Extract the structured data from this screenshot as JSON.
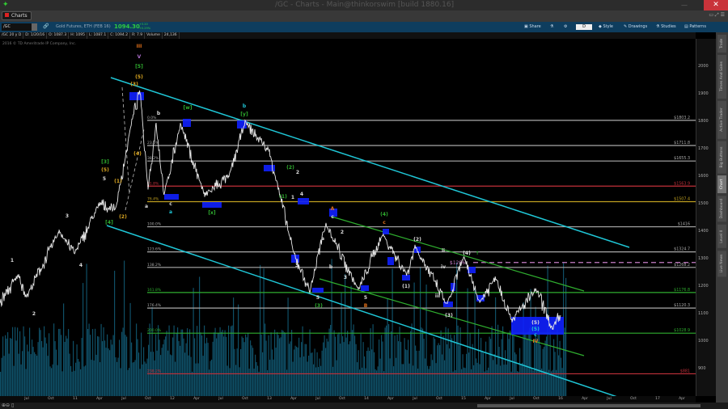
{
  "window": {
    "title": "/GC - Charts - Main@thinkorswim [build 1880.16]",
    "close": "✕",
    "minimize": "—"
  },
  "tabs": {
    "charts": "Charts",
    "right_icons": "▭ ⤢ ☰"
  },
  "toolbar": {
    "symbol": "/GC",
    "description": "Gold Futures, ETH (FEB 16)",
    "last": "1094.30",
    "change": "+3.20",
    "change_pct": "+0.29%",
    "share": "Share",
    "aggregation": "D",
    "style": "Style",
    "drawings": "Drawings",
    "studies": "Studies",
    "patterns": "Patterns"
  },
  "info": [
    "/GC 20 y D",
    "D: 1/20/16",
    "O: 1087.3",
    "H: 1095",
    "L: 1087.1",
    "C: 1094.2",
    "R: 7.9",
    "Volume",
    "24,136"
  ],
  "copyright": "2016 © TD Ameritrade IP Company, Inc.",
  "side_tabs": [
    "Trade",
    "Times And Sales",
    "Active Trader",
    "Big Buttons",
    "Chart",
    "Dashboard",
    "Level II",
    "Live News"
  ],
  "colors": {
    "accent": "#0e3d5e",
    "price": "#e6e6e6",
    "channel": "#1fc6d6",
    "green_channel": "#2fae2f",
    "volume": "#0f4f66",
    "box": "#1020ff",
    "up": "#2ecc40"
  },
  "chart_data": {
    "type": "line",
    "symbol": "/GC",
    "period": "20 y",
    "interval": "D",
    "yaxis_ticks": [
      900,
      1000,
      1100,
      1200,
      1300,
      1400,
      1500,
      1600,
      1700,
      1800,
      1900,
      2000
    ],
    "ylim": [
      810,
      2100
    ],
    "xaxis_ticks": [
      [
        "2010-07",
        "Jul"
      ],
      [
        "2010-10",
        "Oct"
      ],
      [
        "2011-01",
        "11"
      ],
      [
        "2011-04",
        "Apr"
      ],
      [
        "2011-07",
        "Jul"
      ],
      [
        "2011-10",
        "Oct"
      ],
      [
        "2012-01",
        "12"
      ],
      [
        "2012-04",
        "Apr"
      ],
      [
        "2012-07",
        "Jul"
      ],
      [
        "2012-10",
        "Oct"
      ],
      [
        "2013-01",
        "13"
      ],
      [
        "2013-04",
        "Apr"
      ],
      [
        "2013-07",
        "Jul"
      ],
      [
        "2013-10",
        "Oct"
      ],
      [
        "2014-01",
        "14"
      ],
      [
        "2014-04",
        "Apr"
      ],
      [
        "2014-07",
        "Jul"
      ],
      [
        "2014-10",
        "Oct"
      ],
      [
        "2015-01",
        "15"
      ],
      [
        "2015-04",
        "Apr"
      ],
      [
        "2015-07",
        "Jul"
      ],
      [
        "2015-10",
        "Oct"
      ],
      [
        "2016-01",
        "16"
      ],
      [
        "2016-04",
        "Apr"
      ],
      [
        "2016-07",
        "Jul"
      ],
      [
        "2016-10",
        "Oct"
      ],
      [
        "2017-01",
        "17"
      ],
      [
        "2017-04",
        "Apr"
      ]
    ],
    "price_path": [
      [
        "2010-03",
        1110
      ],
      [
        "2010-06",
        1240
      ],
      [
        "2010-07",
        1160
      ],
      [
        "2010-11",
        1400
      ],
      [
        "2011-01",
        1320
      ],
      [
        "2011-04",
        1500
      ],
      [
        "2011-06",
        1480
      ],
      [
        "2011-08",
        1800
      ],
      [
        "2011-09",
        1910
      ],
      [
        "2011-10",
        1560
      ],
      [
        "2011-11",
        1790
      ],
      [
        "2011-12",
        1530
      ],
      [
        "2012-02",
        1790
      ],
      [
        "2012-05",
        1530
      ],
      [
        "2012-08",
        1600
      ],
      [
        "2012-10",
        1795
      ],
      [
        "2013-01",
        1690
      ],
      [
        "2013-02",
        1570
      ],
      [
        "2013-04",
        1320
      ],
      [
        "2013-06",
        1182
      ],
      [
        "2013-08",
        1430
      ],
      [
        "2013-12",
        1185
      ],
      [
        "2014-03",
        1390
      ],
      [
        "2014-06",
        1240
      ],
      [
        "2014-07",
        1345
      ],
      [
        "2014-11",
        1130
      ],
      [
        "2015-01",
        1305
      ],
      [
        "2015-03",
        1145
      ],
      [
        "2015-05",
        1230
      ],
      [
        "2015-07",
        1075
      ],
      [
        "2015-10",
        1190
      ],
      [
        "2015-12",
        1045
      ],
      [
        "2016-01",
        1094
      ]
    ],
    "fib_levels": [
      {
        "pct": "0.0%",
        "price": 1803.2,
        "label": "$1803.2",
        "color": "#aaaaaa"
      },
      {
        "pct": "23.6%",
        "price": 1711.8,
        "label": "$1711.8",
        "color": "#aaaaaa"
      },
      {
        "pct": "38.2%",
        "price": 1655.3,
        "label": "$1655.3",
        "color": "#aaaaaa"
      },
      {
        "pct": "61.8%",
        "price": 1563.9,
        "label": "$1563.9",
        "color": "#c0303a"
      },
      {
        "pct": "76.4%",
        "price": 1507.4,
        "label": "$1507.4",
        "color": "#c0a020"
      },
      {
        "pct": "100.0%",
        "price": 1416,
        "label": "$1416",
        "color": "#aaaaaa"
      },
      {
        "pct": "123.6%",
        "price": 1324.7,
        "label": "$1324.7",
        "color": "#aaaaaa"
      },
      {
        "pct": "138.2%",
        "price": 1268.2,
        "label": "$1268.2",
        "color": "#aaaaaa"
      },
      {
        "pct": "161.8%",
        "price": 1176.8,
        "label": "$1176.8",
        "color": "#2fae2f"
      },
      {
        "pct": "176.4%",
        "price": 1120.3,
        "label": "$1120.3",
        "color": "#aaaaaa"
      },
      {
        "pct": "200.0%",
        "price": 1028.9,
        "label": "$1028.9",
        "color": "#2fae2f"
      },
      {
        "pct": "238.2%",
        "price": 881,
        "label": "$881",
        "color": "#c0303a"
      }
    ],
    "resistance": {
      "price": 1286,
      "label": "$1286"
    },
    "wave_labels": [
      "III",
      "V",
      "[5]",
      "(5)",
      "(3)",
      "(4)",
      "b",
      "[w]",
      "b",
      "[y]",
      "a",
      "c",
      "a",
      "[x]",
      "(2)",
      "2",
      "(1)",
      "1",
      "4",
      "3",
      "5",
      "(3)",
      "A",
      "c",
      "a",
      "2",
      "b",
      "3",
      "5",
      "B",
      "(4)",
      "c",
      "(1)",
      "(2)",
      "ii",
      "iv",
      "iii",
      "(3)",
      "(4)",
      "↑",
      "(5)",
      "(5)",
      "c",
      "IV",
      "[4]",
      "[3]",
      "(5)",
      "5",
      "(1)",
      "(2)",
      "3",
      "4",
      "1",
      "2"
    ]
  }
}
